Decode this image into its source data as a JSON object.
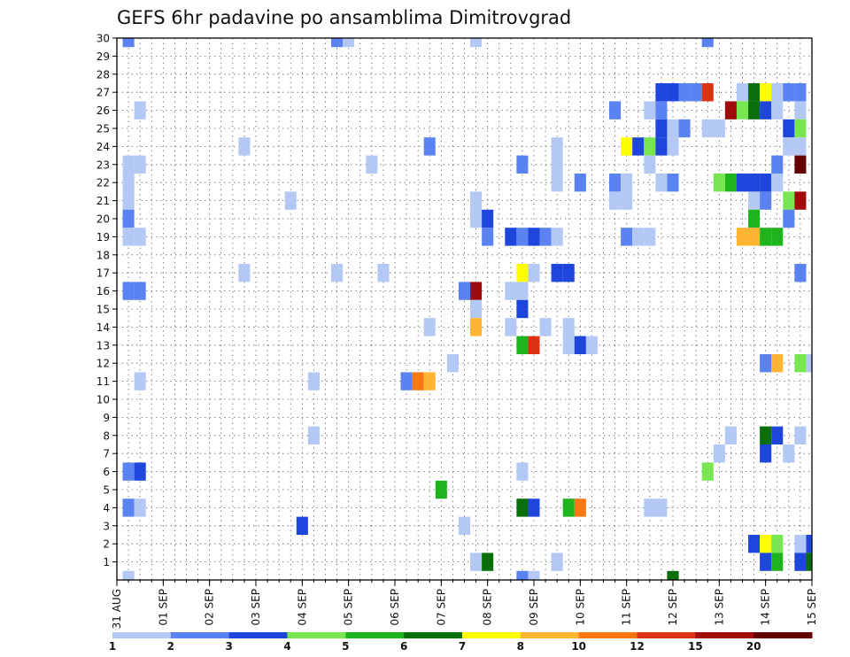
{
  "chart_data": {
    "type": "heatmap",
    "title": "GEFS 6hr padavine po ansamblima Dimitrovgrad",
    "y_ticks": [
      "1",
      "2",
      "3",
      "4",
      "5",
      "6",
      "7",
      "8",
      "9",
      "10",
      "11",
      "12",
      "13",
      "14",
      "15",
      "16",
      "17",
      "18",
      "19",
      "20",
      "21",
      "22",
      "23",
      "24",
      "25",
      "26",
      "27",
      "28",
      "29",
      "30"
    ],
    "x_ticks": [
      "31 AUG",
      "01 SEP",
      "02 SEP",
      "03 SEP",
      "04 SEP",
      "05 SEP",
      "06 SEP",
      "07 SEP",
      "08 SEP",
      "09 SEP",
      "10 SEP",
      "11 SEP",
      "12 SEP",
      "13 SEP",
      "14 SEP",
      "15 SEP"
    ],
    "x_range_days": [
      0,
      15
    ],
    "y_range": [
      0,
      30
    ],
    "grid": true,
    "legend_placement": "bottom",
    "legend_levels": [
      "1",
      "2",
      "3",
      "4",
      "5",
      "6",
      "7",
      "8",
      "10",
      "12",
      "15",
      "20"
    ],
    "legend_colors": [
      "#b4c8f5",
      "#5a82f0",
      "#1e46dc",
      "#78e650",
      "#1eb41e",
      "#0a6e0a",
      "#ffff00",
      "#ffb432",
      "#fa7814",
      "#dc3214",
      "#a00a0a",
      "#640000"
    ],
    "cells": [
      [
        0.25,
        30,
        1
      ],
      [
        4.75,
        30,
        1
      ],
      [
        5.0,
        30,
        0
      ],
      [
        7.75,
        30,
        0
      ],
      [
        12.75,
        30,
        1
      ],
      [
        11.75,
        27,
        2
      ],
      [
        12.0,
        27,
        2
      ],
      [
        12.25,
        27,
        1
      ],
      [
        12.5,
        27,
        1
      ],
      [
        12.75,
        27,
        9
      ],
      [
        13.5,
        27,
        0
      ],
      [
        13.75,
        27,
        5
      ],
      [
        14.0,
        27,
        6
      ],
      [
        14.25,
        27,
        0
      ],
      [
        14.5,
        27,
        1
      ],
      [
        14.75,
        27,
        1
      ],
      [
        0.5,
        26,
        0
      ],
      [
        10.75,
        26,
        1
      ],
      [
        11.5,
        26,
        0
      ],
      [
        11.75,
        26,
        1
      ],
      [
        13.25,
        26,
        10
      ],
      [
        13.5,
        26,
        3
      ],
      [
        13.75,
        26,
        5
      ],
      [
        14.0,
        26,
        2
      ],
      [
        14.25,
        26,
        0
      ],
      [
        14.75,
        26,
        0
      ],
      [
        11.75,
        25,
        2
      ],
      [
        12.0,
        25,
        0
      ],
      [
        12.25,
        25,
        1
      ],
      [
        12.75,
        25,
        0
      ],
      [
        13.0,
        25,
        0
      ],
      [
        14.5,
        25,
        2
      ],
      [
        14.75,
        25,
        3
      ],
      [
        2.75,
        24,
        0
      ],
      [
        6.75,
        24,
        1
      ],
      [
        9.5,
        24,
        0
      ],
      [
        11.0,
        24,
        6
      ],
      [
        11.25,
        24,
        2
      ],
      [
        11.5,
        24,
        3
      ],
      [
        11.75,
        24,
        2
      ],
      [
        12.0,
        24,
        0
      ],
      [
        14.5,
        24,
        0
      ],
      [
        14.75,
        24,
        0
      ],
      [
        0.25,
        23,
        0
      ],
      [
        0.5,
        23,
        0
      ],
      [
        5.5,
        23,
        0
      ],
      [
        8.75,
        23,
        1
      ],
      [
        9.5,
        23,
        0
      ],
      [
        11.5,
        23,
        0
      ],
      [
        14.25,
        23,
        1
      ],
      [
        14.75,
        23,
        11
      ],
      [
        0.25,
        22,
        0
      ],
      [
        9.5,
        22,
        0
      ],
      [
        10.0,
        22,
        1
      ],
      [
        10.75,
        22,
        1
      ],
      [
        11.0,
        22,
        0
      ],
      [
        11.75,
        22,
        0
      ],
      [
        12.0,
        22,
        1
      ],
      [
        13.0,
        22,
        3
      ],
      [
        13.25,
        22,
        4
      ],
      [
        13.5,
        22,
        2
      ],
      [
        13.75,
        22,
        2
      ],
      [
        14.0,
        22,
        2
      ],
      [
        14.25,
        22,
        0
      ],
      [
        0.25,
        21,
        0
      ],
      [
        3.75,
        21,
        0
      ],
      [
        7.75,
        21,
        0
      ],
      [
        10.75,
        21,
        0
      ],
      [
        11.0,
        21,
        0
      ],
      [
        13.75,
        21,
        0
      ],
      [
        14.0,
        21,
        1
      ],
      [
        14.5,
        21,
        3
      ],
      [
        14.75,
        21,
        10
      ],
      [
        0.25,
        20,
        1
      ],
      [
        7.75,
        20,
        0
      ],
      [
        8.0,
        20,
        2
      ],
      [
        13.75,
        20,
        4
      ],
      [
        14.5,
        20,
        1
      ],
      [
        0.25,
        19,
        0
      ],
      [
        0.5,
        19,
        0
      ],
      [
        8.0,
        19,
        1
      ],
      [
        8.5,
        19,
        2
      ],
      [
        8.75,
        19,
        1
      ],
      [
        9.0,
        19,
        2
      ],
      [
        9.25,
        19,
        1
      ],
      [
        9.5,
        19,
        0
      ],
      [
        11.0,
        19,
        1
      ],
      [
        11.25,
        19,
        0
      ],
      [
        11.5,
        19,
        0
      ],
      [
        13.5,
        19,
        7
      ],
      [
        13.75,
        19,
        7
      ],
      [
        14.0,
        19,
        4
      ],
      [
        14.25,
        19,
        4
      ],
      [
        2.75,
        17,
        0
      ],
      [
        4.75,
        17,
        0
      ],
      [
        5.75,
        17,
        0
      ],
      [
        8.75,
        17,
        6
      ],
      [
        9.0,
        17,
        0
      ],
      [
        9.5,
        17,
        2
      ],
      [
        9.75,
        17,
        2
      ],
      [
        14.75,
        17,
        1
      ],
      [
        0.25,
        16,
        1
      ],
      [
        0.5,
        16,
        1
      ],
      [
        7.5,
        16,
        1
      ],
      [
        7.75,
        16,
        10
      ],
      [
        8.5,
        16,
        0
      ],
      [
        8.75,
        16,
        0
      ],
      [
        7.75,
        15,
        0
      ],
      [
        8.75,
        15,
        2
      ],
      [
        6.75,
        14,
        0
      ],
      [
        7.75,
        14,
        7
      ],
      [
        8.5,
        14,
        0
      ],
      [
        9.25,
        14,
        0
      ],
      [
        9.75,
        14,
        0
      ],
      [
        8.75,
        13,
        4
      ],
      [
        9.0,
        13,
        9
      ],
      [
        9.75,
        13,
        0
      ],
      [
        10.0,
        13,
        2
      ],
      [
        10.25,
        13,
        0
      ],
      [
        7.25,
        12,
        0
      ],
      [
        14.0,
        12,
        1
      ],
      [
        14.25,
        12,
        7
      ],
      [
        14.75,
        12,
        3
      ],
      [
        15.0,
        12,
        0
      ],
      [
        0.5,
        11,
        0
      ],
      [
        4.25,
        11,
        0
      ],
      [
        6.25,
        11,
        1
      ],
      [
        6.5,
        11,
        8
      ],
      [
        6.75,
        11,
        7
      ],
      [
        4.25,
        8,
        0
      ],
      [
        13.25,
        8,
        0
      ],
      [
        14.0,
        8,
        5
      ],
      [
        14.25,
        8,
        2
      ],
      [
        14.75,
        8,
        0
      ],
      [
        13.0,
        7,
        0
      ],
      [
        14.0,
        7,
        2
      ],
      [
        14.5,
        7,
        0
      ],
      [
        0.25,
        6,
        1
      ],
      [
        0.5,
        6,
        2
      ],
      [
        8.75,
        6,
        0
      ],
      [
        12.75,
        6,
        3
      ],
      [
        7.0,
        5,
        4
      ],
      [
        0.25,
        4,
        1
      ],
      [
        0.5,
        4,
        0
      ],
      [
        8.75,
        4,
        5
      ],
      [
        9.0,
        4,
        2
      ],
      [
        9.75,
        4,
        4
      ],
      [
        10.0,
        4,
        8
      ],
      [
        11.5,
        4,
        0
      ],
      [
        11.75,
        4,
        0
      ],
      [
        4.0,
        3,
        2
      ],
      [
        7.5,
        3,
        0
      ],
      [
        13.75,
        2,
        2
      ],
      [
        14.0,
        2,
        6
      ],
      [
        14.25,
        2,
        3
      ],
      [
        14.75,
        2,
        0
      ],
      [
        15.0,
        2,
        2
      ],
      [
        7.75,
        1,
        0
      ],
      [
        8.0,
        1,
        5
      ],
      [
        9.5,
        1,
        0
      ],
      [
        14.0,
        1,
        2
      ],
      [
        14.25,
        1,
        4
      ],
      [
        14.75,
        1,
        2
      ],
      [
        15.0,
        1,
        5
      ],
      [
        0.25,
        0,
        0
      ],
      [
        8.75,
        0,
        1
      ],
      [
        9.0,
        0,
        0
      ],
      [
        12.0,
        0,
        5
      ]
    ]
  }
}
